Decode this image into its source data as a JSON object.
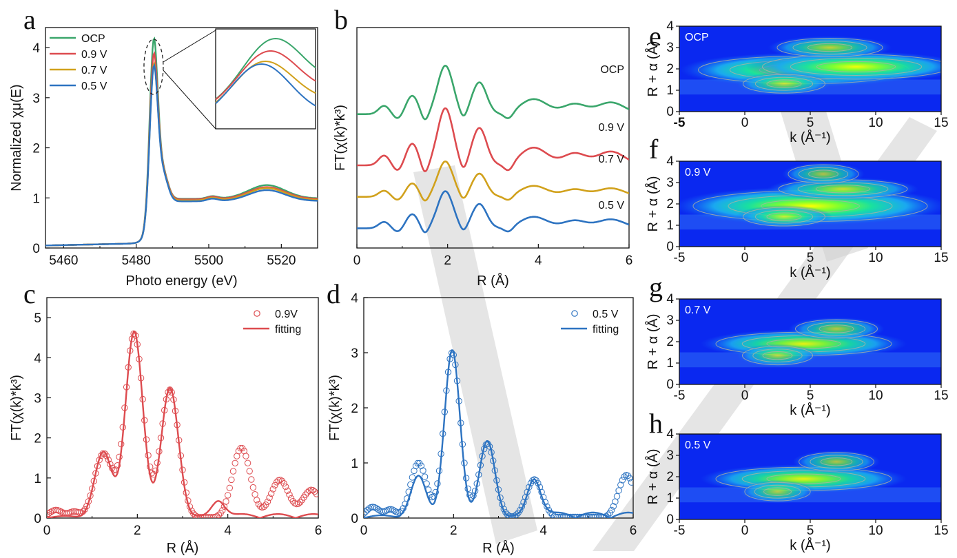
{
  "chart_data": [
    {
      "id": "a",
      "type": "line",
      "panel_label": "a",
      "xlabel": "Photo energy (eV)",
      "ylabel": "Normalized χμ(E)",
      "xlim": [
        5455,
        5530
      ],
      "ylim": [
        0,
        4.4
      ],
      "xticks": [
        5460,
        5480,
        5500,
        5520
      ],
      "yticks": [
        0,
        1,
        2,
        3,
        4
      ],
      "legend": [
        "OCP",
        "0.9 V",
        "0.7 V",
        "0.5 V"
      ],
      "inset": "zoom of white-line peak",
      "series": [
        {
          "name": "OCP",
          "color": "#3aa66b",
          "peak": 4.18,
          "post": 0.93,
          "hump": 1.2
        },
        {
          "name": "0.9 V",
          "color": "#dd4b4f",
          "peak": 3.88,
          "post": 0.92,
          "hump": 1.16
        },
        {
          "name": "0.7 V",
          "color": "#d1a11c",
          "peak": 3.67,
          "post": 0.9,
          "hump": 1.14
        },
        {
          "name": "0.5 V",
          "color": "#2d73c1",
          "peak": 3.63,
          "post": 0.88,
          "hump": 1.1
        }
      ]
    },
    {
      "id": "b",
      "type": "line",
      "panel_label": "b",
      "xlabel": "R (Å)",
      "ylabel": "FT(χ(k)*k³)",
      "xlim": [
        0,
        6
      ],
      "xticks": [
        0,
        2,
        4,
        6
      ],
      "series": [
        {
          "name": "OCP",
          "color": "#3aa66b",
          "offset": 3.4,
          "scale": 0.85
        },
        {
          "name": "0.9 V",
          "color": "#dd4b4f",
          "offset": 2.1,
          "scale": 1.0
        },
        {
          "name": "0.7 V",
          "color": "#d1a11c",
          "offset": 1.3,
          "scale": 0.62
        },
        {
          "name": "0.5 V",
          "color": "#2d73c1",
          "offset": 0.5,
          "scale": 0.65
        }
      ]
    },
    {
      "id": "c",
      "type": "scatter",
      "panel_label": "c",
      "xlabel": "R (Å)",
      "ylabel": "FT(χ(k)*k³)",
      "xlim": [
        0,
        6
      ],
      "ylim": [
        0,
        5.5
      ],
      "xticks": [
        0,
        2,
        4,
        6
      ],
      "yticks": [
        0,
        1,
        2,
        3,
        4,
        5
      ],
      "legend": [
        "0.9V",
        "fitting"
      ],
      "color": "#dd4b4f",
      "peaks": [
        {
          "r": 1.25,
          "y": 1.6
        },
        {
          "r": 1.93,
          "y": 4.6
        },
        {
          "r": 2.72,
          "y": 3.2
        },
        {
          "r": 4.3,
          "y": 1.75
        },
        {
          "r": 5.15,
          "y": 0.95
        },
        {
          "r": 5.85,
          "y": 0.7
        }
      ]
    },
    {
      "id": "d",
      "type": "scatter",
      "panel_label": "d",
      "xlabel": "R (Å)",
      "ylabel": "FT(χ(k)*k³)",
      "xlim": [
        0,
        6
      ],
      "ylim": [
        0,
        4
      ],
      "xticks": [
        0,
        2,
        4,
        6
      ],
      "yticks": [
        0,
        1,
        2,
        3,
        4
      ],
      "legend": [
        "0.5 V",
        "fitting"
      ],
      "color": "#2d73c1",
      "peaks": [
        {
          "r": 1.22,
          "y": 1.0
        },
        {
          "r": 1.97,
          "y": 3.0
        },
        {
          "r": 2.75,
          "y": 1.35
        },
        {
          "r": 3.8,
          "y": 0.7
        },
        {
          "r": 5.85,
          "y": 0.78
        }
      ]
    },
    {
      "id": "e",
      "type": "heatmap",
      "panel_label": "e",
      "label": "OCP",
      "xlabel": "k (Å⁻¹)",
      "ylabel": "R + α (Å)",
      "xlim": [
        -5,
        15
      ],
      "ylim": [
        0,
        4
      ],
      "xticks": [
        -5,
        0,
        5,
        10,
        15
      ],
      "yticks": [
        0,
        1,
        2,
        3,
        4
      ],
      "blobs": [
        {
          "k": 4.5,
          "r": 1.95,
          "a": 0.9
        },
        {
          "k": 8.5,
          "r": 2.1,
          "a": 0.8
        },
        {
          "k": 6.5,
          "r": 3.0,
          "a": 0.45
        },
        {
          "k": 3.0,
          "r": 1.3,
          "a": 0.35
        }
      ]
    },
    {
      "id": "f",
      "type": "heatmap",
      "panel_label": "f",
      "label": "0.9 V",
      "xlabel": "k (Å⁻¹)",
      "ylabel": "R + α (Å)",
      "xlim": [
        -5,
        15
      ],
      "ylim": [
        0,
        4
      ],
      "xticks": [
        -5,
        0,
        5,
        10,
        15
      ],
      "yticks": [
        0,
        1,
        2,
        3,
        4
      ],
      "blobs": [
        {
          "k": 5.0,
          "r": 1.9,
          "a": 1.0
        },
        {
          "k": 7.5,
          "r": 2.7,
          "a": 0.55
        },
        {
          "k": 3.0,
          "r": 1.4,
          "a": 0.35
        },
        {
          "k": 6.0,
          "r": 3.4,
          "a": 0.3
        }
      ]
    },
    {
      "id": "g",
      "type": "heatmap",
      "panel_label": "g",
      "label": "0.7 V",
      "xlabel": "k (Å⁻¹)",
      "ylabel": "R + α (Å)",
      "xlim": [
        -5,
        15
      ],
      "ylim": [
        0,
        4
      ],
      "xticks": [
        -5,
        0,
        5,
        10,
        15
      ],
      "yticks": [
        0,
        1,
        2,
        3,
        4
      ],
      "blobs": [
        {
          "k": 4.5,
          "r": 1.9,
          "a": 0.75
        },
        {
          "k": 7.0,
          "r": 2.6,
          "a": 0.35
        },
        {
          "k": 2.5,
          "r": 1.35,
          "a": 0.3
        }
      ]
    },
    {
      "id": "h",
      "type": "heatmap",
      "panel_label": "h",
      "label": "0.5 V",
      "xlabel": "k (Å⁻¹)",
      "ylabel": "R + α (Å)",
      "xlim": [
        -5,
        15
      ],
      "ylim": [
        0,
        4
      ],
      "xticks": [
        -5,
        0,
        5,
        10,
        15
      ],
      "yticks": [
        0,
        1,
        2,
        3,
        4
      ],
      "blobs": [
        {
          "k": 4.5,
          "r": 1.9,
          "a": 0.75
        },
        {
          "k": 7.0,
          "r": 2.7,
          "a": 0.32
        },
        {
          "k": 2.5,
          "r": 1.3,
          "a": 0.28
        }
      ]
    }
  ]
}
